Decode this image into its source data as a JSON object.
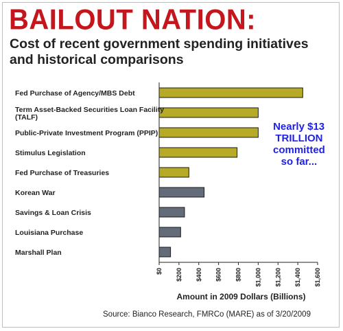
{
  "headline": "BAILOUT NATION:",
  "subtitle": "Cost of recent government spending initiatives and historical comparisons",
  "source": "Source: Bianco Research, FMRCo (MARE) as of 3/20/2009",
  "colors": {
    "headline": "#c4161c",
    "recent": "#b7aa26",
    "historical": "#646b79",
    "annotation": "#1f21e6"
  },
  "chart_data": {
    "type": "bar",
    "orientation": "horizontal",
    "categories": [
      [
        "Fed Purchase of Agency/MBS Debt"
      ],
      [
        "Term Asset-Backed Securities Loan Facility",
        "(TALF)"
      ],
      [
        "Public-Private Investment Program (PPIP)"
      ],
      [
        "Stimulus Legislation"
      ],
      [
        "Fed Purchase of Treasuries"
      ],
      [
        "Korean War"
      ],
      [
        "Savings & Loan Crisis"
      ],
      [
        "Louisiana Purchase"
      ],
      [
        "Marshall Plan"
      ]
    ],
    "values": [
      1450,
      1000,
      1000,
      787,
      300,
      454,
      256,
      217,
      115
    ],
    "groups": [
      "recent",
      "recent",
      "recent",
      "recent",
      "recent",
      "historical",
      "historical",
      "historical",
      "historical"
    ],
    "xlabel": "Amount in 2009 Dollars (Billions)",
    "xlim": [
      0,
      1600
    ],
    "xticks": [
      0,
      200,
      400,
      600,
      800,
      1000,
      1200,
      1400,
      1600
    ],
    "xtick_labels": [
      "$0",
      "$200",
      "$400",
      "$600",
      "$800",
      "$1,000",
      "$1,200",
      "$1,400",
      "$1,600"
    ],
    "annotation": [
      "Nearly $13",
      "TRILLION",
      "committed",
      "so far..."
    ],
    "grid": false
  }
}
